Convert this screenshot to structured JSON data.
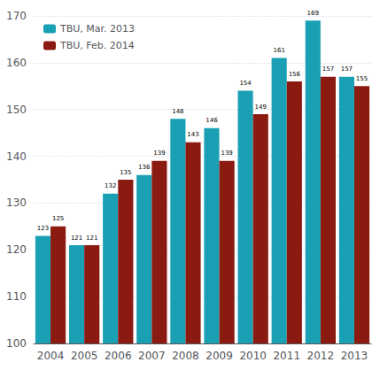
{
  "chart_data": {
    "type": "bar",
    "categories": [
      "2004",
      "2005",
      "2006",
      "2007",
      "2008",
      "2009",
      "2010",
      "2011",
      "2012",
      "2013"
    ],
    "series": [
      {
        "name": "TBU, Mar. 2013",
        "color": "#1aa0b4",
        "values": [
          123,
          121,
          132,
          136,
          148,
          146,
          154,
          161,
          169,
          157
        ]
      },
      {
        "name": "TBU, Feb. 2014",
        "color": "#8b1a10",
        "values": [
          125,
          121,
          135,
          139,
          143,
          139,
          149,
          156,
          157,
          155
        ]
      }
    ],
    "ylim": [
      100,
      170
    ],
    "yticks": [
      100,
      110,
      120,
      130,
      140,
      150,
      160,
      170
    ],
    "grid": true,
    "legend": "upper left",
    "data_labels": true
  }
}
